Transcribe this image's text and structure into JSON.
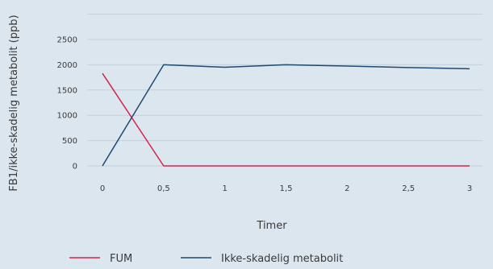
{
  "chart_data": {
    "type": "line",
    "title": "",
    "xlabel": "Timer",
    "ylabel": "FB1/ikke-skadelig metabolit (ppb)",
    "x": [
      0,
      0.5,
      1,
      1.5,
      2,
      2.5,
      3
    ],
    "x_tick_labels": [
      "0",
      "0,5",
      "1",
      "1,5",
      "2",
      "2,5",
      "3"
    ],
    "y_tick_labels": [
      "0",
      "500",
      "1000",
      "1500",
      "2000",
      "2500"
    ],
    "xlim": [
      0,
      3
    ],
    "ylim": [
      0,
      3000
    ],
    "grid": true,
    "legend_position": "bottom",
    "series": [
      {
        "name": "FUM",
        "color": "#d6234a",
        "values": [
          1830,
          0,
          0,
          0,
          0,
          0,
          0
        ]
      },
      {
        "name": "Ikke-skadelig metabolit",
        "color": "#1e4a73",
        "values": [
          0,
          2000,
          1950,
          2000,
          1975,
          1945,
          1920
        ]
      }
    ]
  },
  "colors": {
    "background": "#dce6ee",
    "grid": "#c3d0da"
  }
}
